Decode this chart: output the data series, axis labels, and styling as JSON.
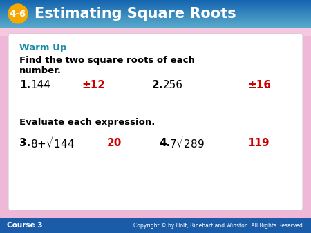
{
  "title_text": "Estimating Square Roots",
  "lesson_num": "4-6",
  "header_bg_top": "#1565b0",
  "header_bg_bot": "#4a9fd4",
  "header_text_color": "#ffffff",
  "badge_color": "#f5a800",
  "badge_text_color": "#ffffff",
  "body_bg_color": "#f0b8d8",
  "card_bg_color": "#ffffff",
  "footer_bg_color": "#1a5ca8",
  "footer_left": "Course 3",
  "footer_right": "Copyright © by Holt, Rinehart and Winston. All Rights Reserved.",
  "warm_up_color": "#1a8ca8",
  "black_color": "#000000",
  "red_color": "#cc0000",
  "fig_w": 4.5,
  "fig_h": 3.38,
  "dpi": 100
}
